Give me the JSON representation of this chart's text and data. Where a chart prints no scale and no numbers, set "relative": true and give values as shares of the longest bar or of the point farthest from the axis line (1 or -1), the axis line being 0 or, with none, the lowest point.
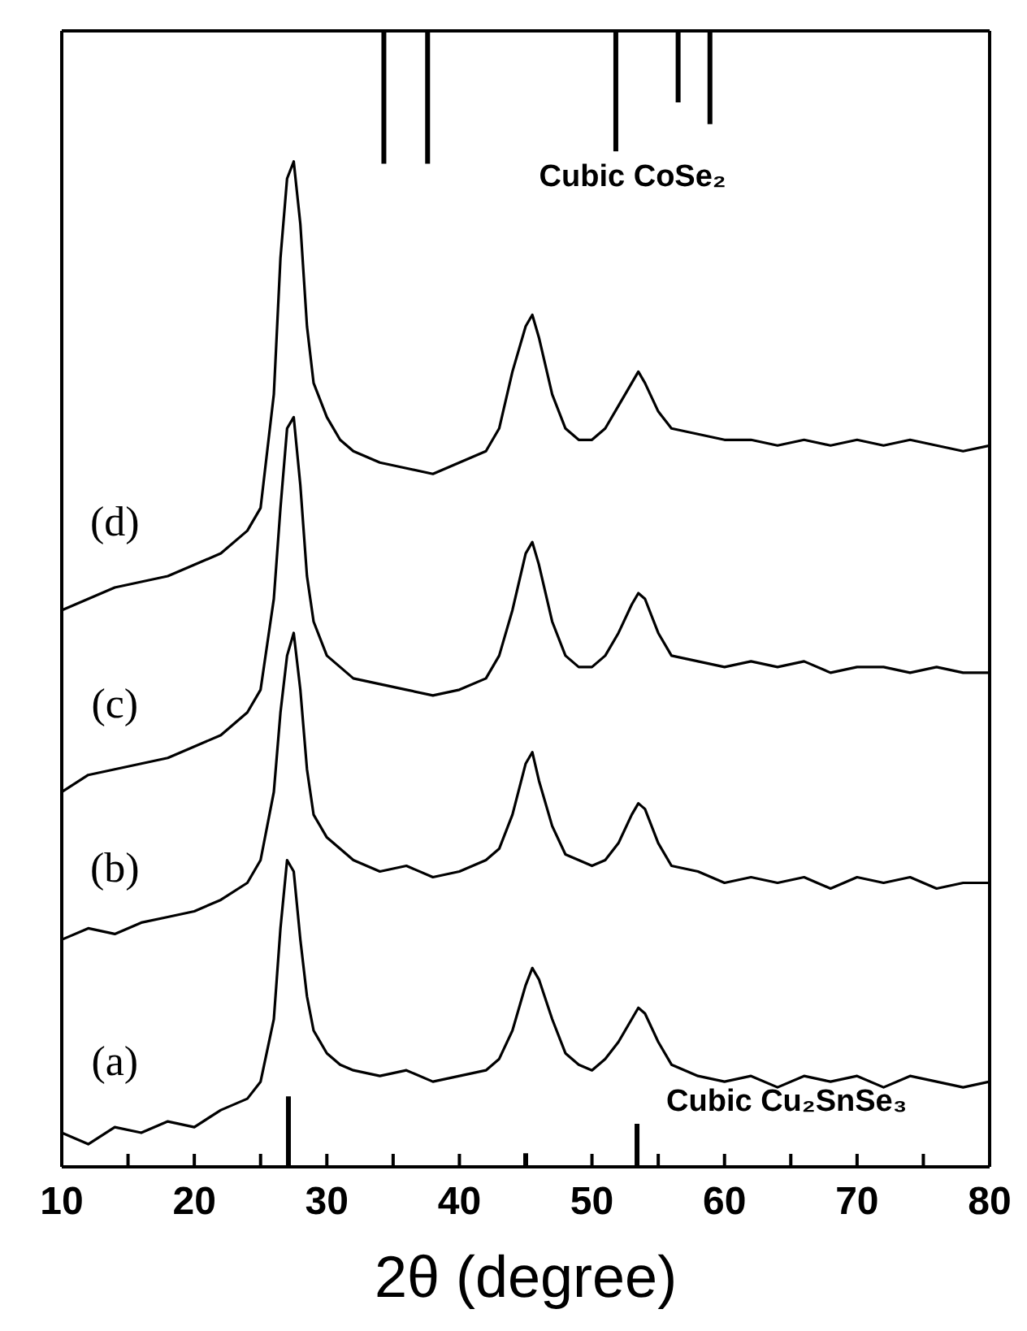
{
  "chart_data": {
    "type": "line",
    "relative": true,
    "xlabel": "2θ (degree)",
    "xlim": [
      10,
      80
    ],
    "xticks": [
      10,
      {
        "value": 15,
        "label": null
      },
      20,
      {
        "value": 25,
        "label": null
      },
      30,
      {
        "value": 35,
        "label": null
      },
      40,
      {
        "value": 45,
        "label": null
      },
      50,
      {
        "value": 55,
        "label": null
      },
      60,
      {
        "value": 65,
        "label": null
      },
      70,
      {
        "value": 75,
        "label": null
      },
      80
    ],
    "x": [
      10,
      12,
      14,
      16,
      18,
      20,
      22,
      24,
      25,
      26,
      26.5,
      27,
      27.5,
      28,
      28.5,
      29,
      30,
      31,
      32,
      34,
      36,
      38,
      40,
      42,
      43,
      44,
      45,
      45.5,
      46,
      47,
      48,
      49,
      50,
      51,
      52,
      53,
      53.5,
      54,
      55,
      56,
      58,
      60,
      62,
      64,
      66,
      68,
      70,
      72,
      74,
      76,
      78,
      80
    ],
    "marker": "none",
    "legend": false,
    "grid": false,
    "series": [
      {
        "name": "(a)",
        "color": "#000000",
        "values": [
          0.03,
          0.02,
          0.035,
          0.03,
          0.04,
          0.035,
          0.05,
          0.06,
          0.075,
          0.13,
          0.21,
          0.27,
          0.26,
          0.2,
          0.15,
          0.12,
          0.1,
          0.09,
          0.085,
          0.08,
          0.085,
          0.075,
          0.08,
          0.085,
          0.095,
          0.12,
          0.16,
          0.175,
          0.165,
          0.13,
          0.1,
          0.09,
          0.085,
          0.095,
          0.11,
          0.13,
          0.14,
          0.135,
          0.11,
          0.09,
          0.08,
          0.075,
          0.08,
          0.07,
          0.08,
          0.075,
          0.08,
          0.07,
          0.08,
          0.075,
          0.07,
          0.075
        ]
      },
      {
        "name": "(b)",
        "color": "#000000",
        "values": [
          0.2,
          0.21,
          0.205,
          0.215,
          0.22,
          0.225,
          0.235,
          0.25,
          0.27,
          0.33,
          0.4,
          0.45,
          0.47,
          0.42,
          0.35,
          0.31,
          0.29,
          0.28,
          0.27,
          0.26,
          0.265,
          0.255,
          0.26,
          0.27,
          0.28,
          0.31,
          0.355,
          0.365,
          0.34,
          0.3,
          0.275,
          0.27,
          0.265,
          0.27,
          0.285,
          0.31,
          0.32,
          0.315,
          0.285,
          0.265,
          0.26,
          0.25,
          0.255,
          0.25,
          0.255,
          0.245,
          0.255,
          0.25,
          0.255,
          0.245,
          0.25,
          0.25
        ]
      },
      {
        "name": "(c)",
        "color": "#000000",
        "values": [
          0.33,
          0.345,
          0.35,
          0.355,
          0.36,
          0.37,
          0.38,
          0.4,
          0.42,
          0.5,
          0.58,
          0.65,
          0.66,
          0.6,
          0.52,
          0.48,
          0.45,
          0.44,
          0.43,
          0.425,
          0.42,
          0.415,
          0.42,
          0.43,
          0.45,
          0.49,
          0.54,
          0.55,
          0.53,
          0.48,
          0.45,
          0.44,
          0.44,
          0.45,
          0.47,
          0.495,
          0.505,
          0.5,
          0.47,
          0.45,
          0.445,
          0.44,
          0.445,
          0.44,
          0.445,
          0.435,
          0.44,
          0.44,
          0.435,
          0.44,
          0.435,
          0.435
        ]
      },
      {
        "name": "(d)",
        "color": "#000000",
        "values": [
          0.49,
          0.5,
          0.51,
          0.515,
          0.52,
          0.53,
          0.54,
          0.56,
          0.58,
          0.68,
          0.8,
          0.87,
          0.885,
          0.83,
          0.74,
          0.69,
          0.66,
          0.64,
          0.63,
          0.62,
          0.615,
          0.61,
          0.62,
          0.63,
          0.65,
          0.7,
          0.74,
          0.75,
          0.73,
          0.68,
          0.65,
          0.64,
          0.64,
          0.65,
          0.67,
          0.69,
          0.7,
          0.69,
          0.665,
          0.65,
          0.645,
          0.64,
          0.64,
          0.635,
          0.64,
          0.635,
          0.64,
          0.635,
          0.64,
          0.635,
          0.63,
          0.635
        ]
      },
      {
        "name": "Cubic CoSe₂",
        "color": "#000000",
        "x": [
          34.3,
          34.3,
          null,
          37.6,
          37.6,
          null,
          51.8,
          51.8,
          null,
          56.5,
          56.5,
          null,
          58.9,
          58.9
        ],
        "values": [
          1,
          0.883,
          null,
          1,
          0.883,
          null,
          1,
          0.894,
          null,
          1,
          0.937,
          null,
          1,
          0.918
        ]
      },
      {
        "name": "Cubic Cu₂SnSe₃",
        "color": "#000000",
        "x": [
          27.1,
          27.1,
          null,
          45.0,
          45.0,
          null,
          53.4,
          53.4
        ],
        "values": [
          0,
          0.062,
          null,
          0,
          0.012,
          null,
          0,
          0.038
        ]
      }
    ]
  }
}
